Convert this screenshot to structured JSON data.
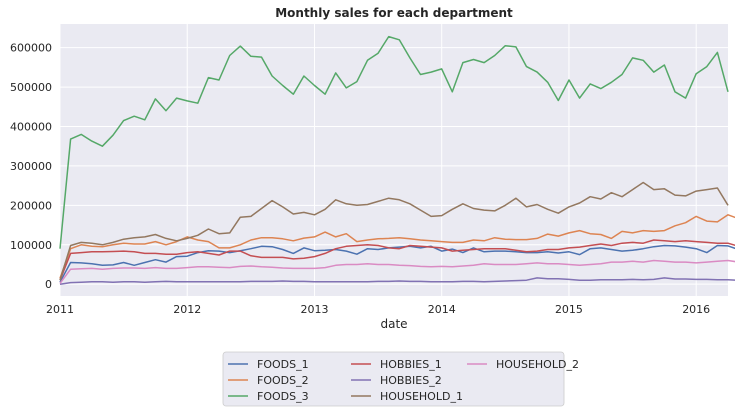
{
  "chart_data": {
    "type": "line",
    "title": "Monthly sales for each department",
    "xlabel": "date",
    "ylabel": "",
    "x_ticks": [
      "2011",
      "2012",
      "2013",
      "2014",
      "2015",
      "2016"
    ],
    "y_ticks": [
      "0",
      "100000",
      "200000",
      "300000",
      "400000",
      "500000",
      "600000"
    ],
    "ylim": [
      -30000,
      660000
    ],
    "start_month": "2011-01",
    "grid": true,
    "legend_position": "bottom-center",
    "series": [
      {
        "name": "FOODS_1",
        "color": "#4c72b0",
        "values": [
          5000,
          55000,
          54000,
          52000,
          48000,
          49000,
          55000,
          48000,
          55000,
          62000,
          56000,
          70000,
          71000,
          80000,
          85000,
          84000,
          80000,
          85000,
          90000,
          96000,
          95000,
          88000,
          78000,
          92000,
          85000,
          86000,
          88000,
          84000,
          76000,
          90000,
          88000,
          92000,
          94000,
          96000,
          92000,
          96000,
          84000,
          89000,
          80000,
          92000,
          82000,
          84000,
          84000,
          82000,
          80000,
          80000,
          82000,
          79000,
          82000,
          75000,
          90000,
          92000,
          88000,
          84000,
          86000,
          90000,
          95000,
          98000,
          97000,
          94000,
          90000,
          80000,
          98000,
          97000,
          88000,
          92000,
          76000
        ]
      },
      {
        "name": "FOODS_2",
        "color": "#dd8452",
        "values": [
          15000,
          90000,
          100000,
          96000,
          95000,
          100000,
          104000,
          102000,
          102000,
          108000,
          100000,
          108000,
          120000,
          112000,
          108000,
          92000,
          92000,
          100000,
          112000,
          118000,
          118000,
          115000,
          110000,
          117000,
          120000,
          132000,
          120000,
          128000,
          108000,
          112000,
          115000,
          116000,
          118000,
          115000,
          112000,
          110000,
          108000,
          106000,
          106000,
          112000,
          110000,
          118000,
          114000,
          113000,
          113000,
          116000,
          127000,
          122000,
          130000,
          136000,
          128000,
          126000,
          116000,
          134000,
          130000,
          136000,
          134000,
          136000,
          148000,
          156000,
          172000,
          160000,
          158000,
          176000,
          166000,
          172000,
          150000
        ]
      },
      {
        "name": "FOODS_3",
        "color": "#55a868",
        "values": [
          90000,
          368000,
          380000,
          363000,
          350000,
          378000,
          415000,
          426000,
          417000,
          470000,
          440000,
          472000,
          465000,
          459000,
          524000,
          518000,
          580000,
          604000,
          578000,
          576000,
          528000,
          504000,
          482000,
          528000,
          504000,
          482000,
          536000,
          498000,
          514000,
          568000,
          586000,
          628000,
          620000,
          574000,
          532000,
          538000,
          546000,
          488000,
          562000,
          570000,
          562000,
          580000,
          605000,
          602000,
          552000,
          538000,
          512000,
          466000,
          518000,
          472000,
          508000,
          496000,
          512000,
          532000,
          574000,
          568000,
          538000,
          556000,
          488000,
          472000,
          534000,
          552000,
          588000,
          488000
        ]
      },
      {
        "name": "HOBBIES_1",
        "color": "#c44e52",
        "values": [
          10000,
          78000,
          80000,
          82000,
          82000,
          83000,
          84000,
          82000,
          78000,
          78000,
          76000,
          76000,
          80000,
          82000,
          78000,
          74000,
          84000,
          84000,
          72000,
          68000,
          68000,
          68000,
          64000,
          66000,
          70000,
          78000,
          90000,
          96000,
          98000,
          100000,
          98000,
          92000,
          90000,
          98000,
          96000,
          94000,
          92000,
          84000,
          86000,
          88000,
          90000,
          90000,
          90000,
          86000,
          82000,
          84000,
          88000,
          88000,
          92000,
          94000,
          98000,
          102000,
          98000,
          104000,
          106000,
          104000,
          112000,
          110000,
          108000,
          110000,
          108000,
          106000,
          104000,
          104000,
          96000,
          88000,
          86000
        ]
      },
      {
        "name": "HOBBIES_2",
        "color": "#8172b3",
        "values": [
          0,
          4000,
          5000,
          6000,
          6000,
          5000,
          6000,
          6000,
          5000,
          6000,
          7000,
          6000,
          6000,
          6000,
          6000,
          6000,
          6000,
          6000,
          7000,
          7000,
          7000,
          8000,
          7000,
          7000,
          6000,
          6000,
          6000,
          6000,
          6000,
          6000,
          7000,
          7000,
          8000,
          7000,
          7000,
          6000,
          6000,
          6000,
          7000,
          7000,
          6000,
          7000,
          8000,
          9000,
          10000,
          16000,
          14000,
          14000,
          12000,
          10000,
          10000,
          11000,
          11000,
          11000,
          12000,
          11000,
          12000,
          16000,
          13000,
          13000,
          12000,
          12000,
          11000,
          11000,
          10000,
          10000,
          9000
        ]
      },
      {
        "name": "HOUSEHOLD_1",
        "color": "#937860",
        "values": [
          10000,
          98000,
          106000,
          104000,
          100000,
          106000,
          114000,
          118000,
          120000,
          126000,
          116000,
          110000,
          116000,
          124000,
          140000,
          128000,
          130000,
          170000,
          172000,
          192000,
          212000,
          196000,
          178000,
          182000,
          176000,
          190000,
          214000,
          204000,
          200000,
          202000,
          210000,
          218000,
          214000,
          204000,
          188000,
          172000,
          174000,
          190000,
          204000,
          192000,
          188000,
          186000,
          200000,
          218000,
          196000,
          202000,
          190000,
          180000,
          196000,
          206000,
          222000,
          216000,
          232000,
          222000,
          240000,
          258000,
          240000,
          242000,
          226000,
          224000,
          236000,
          240000,
          244000,
          200000
        ]
      },
      {
        "name": "HOUSEHOLD_2",
        "color": "#da8bc3",
        "values": [
          2000,
          38000,
          39000,
          40000,
          38000,
          40000,
          41000,
          41000,
          40000,
          42000,
          40000,
          40000,
          42000,
          44000,
          44000,
          43000,
          42000,
          45000,
          46000,
          44000,
          43000,
          41000,
          40000,
          40000,
          40000,
          42000,
          48000,
          50000,
          50000,
          52000,
          50000,
          50000,
          48000,
          47000,
          45000,
          44000,
          45000,
          44000,
          46000,
          48000,
          52000,
          50000,
          50000,
          50000,
          52000,
          54000,
          52000,
          52000,
          50000,
          48000,
          50000,
          52000,
          56000,
          56000,
          58000,
          56000,
          60000,
          58000,
          56000,
          56000,
          54000,
          56000,
          58000,
          60000,
          56000,
          48000,
          48000
        ]
      }
    ]
  }
}
